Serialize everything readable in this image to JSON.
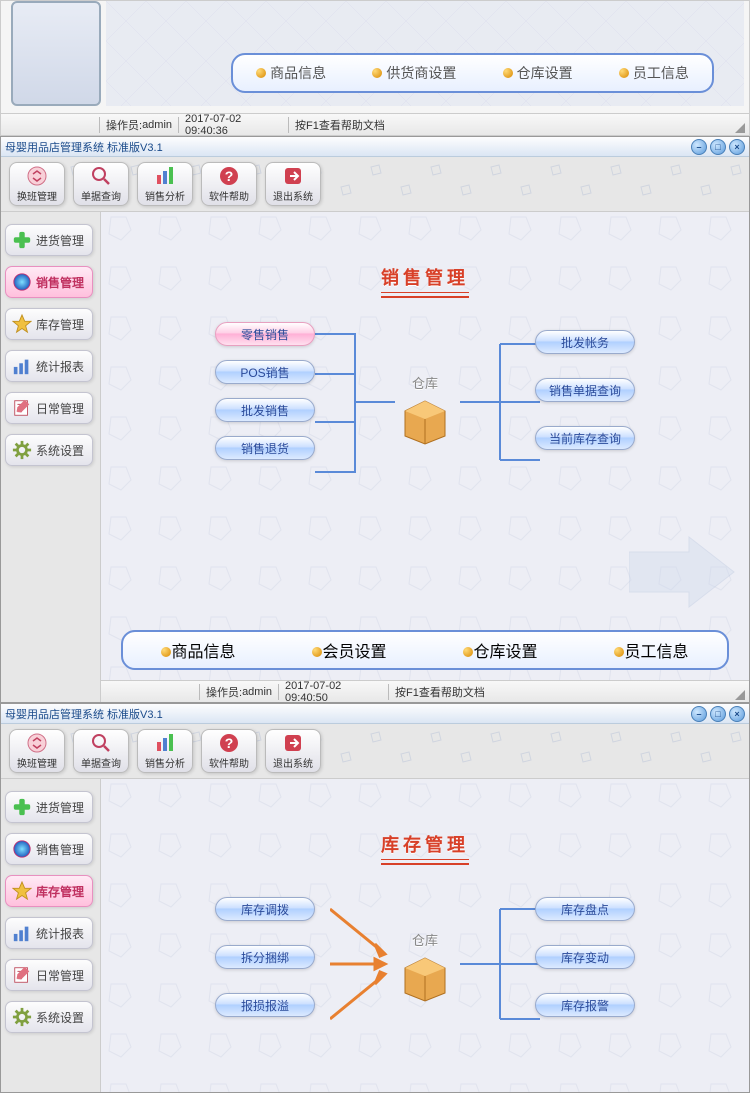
{
  "app_title": "母婴用品店管理系统 标准版V3.1",
  "status": {
    "operator_label": "操作员:",
    "operator": "admin",
    "time1": "2017-07-02 09:40:36",
    "time2": "2017-07-02 09:40:50",
    "help": "按F1查看帮助文档"
  },
  "top_links": [
    "商品信息",
    "供货商设置",
    "仓库设置",
    "员工信息"
  ],
  "toolbar": [
    {
      "label": "换班管理",
      "icon": "swap"
    },
    {
      "label": "单据查询",
      "icon": "search"
    },
    {
      "label": "销售分析",
      "icon": "bars"
    },
    {
      "label": "软件帮助",
      "icon": "help"
    },
    {
      "label": "退出系统",
      "icon": "exit"
    }
  ],
  "sidebar": [
    {
      "label": "进货管理",
      "icon": "plus",
      "color": "#4ac050"
    },
    {
      "label": "销售管理",
      "icon": "ball",
      "color": "#e03890"
    },
    {
      "label": "库存管理",
      "icon": "star",
      "color": "#f0c040"
    },
    {
      "label": "统计报表",
      "icon": "chart",
      "color": "#5080d0"
    },
    {
      "label": "日常管理",
      "icon": "note",
      "color": "#e05060"
    },
    {
      "label": "系统设置",
      "icon": "gear",
      "color": "#80a040"
    }
  ],
  "win2": {
    "title": "销售管理",
    "center": "仓库",
    "left_pills": [
      "零售销售",
      "POS销售",
      "批发销售",
      "销售退货"
    ],
    "right_pills": [
      "批发帐务",
      "销售单据查询",
      "当前库存查询"
    ],
    "links": [
      "商品信息",
      "会员设置",
      "仓库设置",
      "员工信息"
    ],
    "active_sidebar": 1,
    "selected_pill": 0
  },
  "win3": {
    "title": "库存管理",
    "center": "仓库",
    "left_pills": [
      "库存调拨",
      "拆分捆绑",
      "报损报溢"
    ],
    "right_pills": [
      "库存盘点",
      "库存变动",
      "库存报警"
    ],
    "active_sidebar": 2
  },
  "colors": {
    "title_red": "#d84028",
    "pill_text": "#2a4a9a",
    "border_blue": "#6a8fd8"
  }
}
